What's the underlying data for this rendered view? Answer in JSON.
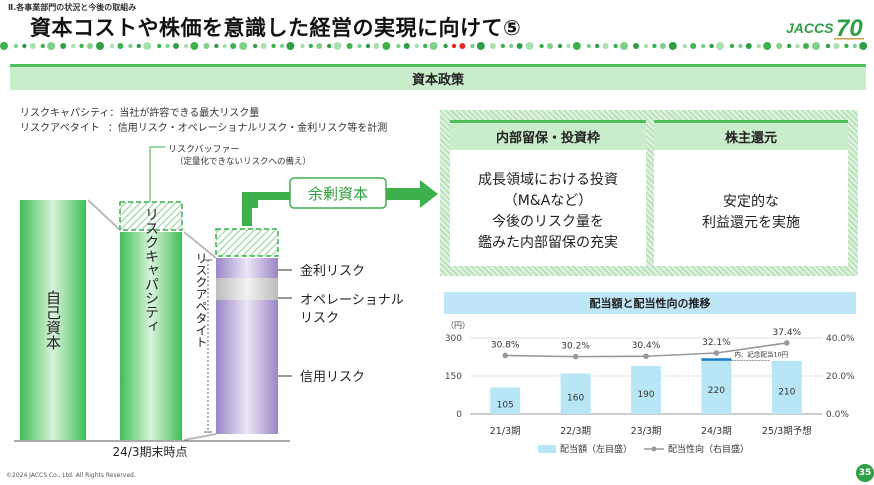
{
  "header": {
    "section": "Ⅱ.各事業部門の状況と今後の取組み",
    "title": "資本コストや株価を意識した経営の実現に向けて⑤",
    "logo_text": "JACCS",
    "logo_number": "70"
  },
  "banner": {
    "label": "資本政策"
  },
  "definitions": [
    {
      "term": "リスクキャパシティ",
      "desc": "：当社が許容できる最大リスク量"
    },
    {
      "term": "リスクアペタイト",
      "desc": "：信用リスク・オペレーショナルリスク・金利リスク等を計測"
    }
  ],
  "diagram": {
    "buffer_label": "リスクバッファー",
    "buffer_note": "（定量化できないリスクへの備え）",
    "columns": {
      "equity": "自己資本",
      "capacity": "リスクキャパシティ",
      "appetite": "リスクアペタイト"
    },
    "risk_items": [
      "金利リスク",
      "オペレーショナル",
      "リスク",
      "信用リスク"
    ],
    "surplus_label": "余剰資本",
    "period_label": "24/3期末時点"
  },
  "cards": {
    "retained": {
      "title": "内部留保・投資枠",
      "lines": [
        "成長領域における投資",
        "（M&Aなど）",
        "今後のリスク量を",
        "鑑みた内部留保の充実"
      ]
    },
    "returns": {
      "title": "株主還元",
      "lines": [
        "安定的な",
        "利益還元を実施"
      ]
    }
  },
  "chart_title": "配当額と配当性向の推移",
  "chart_data": {
    "type": "bar",
    "categories": [
      "21/3期",
      "22/3期",
      "23/3期",
      "24/3期",
      "25/3期予想"
    ],
    "series": [
      {
        "name": "配当額（左目盛）",
        "type": "bar",
        "values": [
          105,
          160,
          190,
          220,
          210
        ],
        "color": "#b8e6f5"
      },
      {
        "name": "配当性向（右目盛）",
        "type": "line",
        "values": [
          30.8,
          30.2,
          30.4,
          32.1,
          37.4
        ],
        "color": "#999999"
      }
    ],
    "value_labels": [
      "105",
      "160",
      "190",
      "220",
      "210"
    ],
    "ratio_labels": [
      "30.8%",
      "30.2%",
      "30.4%",
      "32.1%",
      "37.4%"
    ],
    "y_left": {
      "unit": "（円）",
      "ticks": [
        "300",
        "150",
        "0"
      ],
      "range": [
        0,
        300
      ]
    },
    "y_right": {
      "ticks": [
        "40.0%",
        "20.0%",
        "0.0%"
      ],
      "range": [
        0,
        40
      ]
    },
    "annotation": "内、記念配当10円",
    "commemorative_dividend": 10,
    "legend_position": "bottom"
  },
  "footer": {
    "copyright": "©2024 JACCS Co., Ltd. All Rights Reserved.",
    "page": "35"
  },
  "colors": {
    "accent_green": "#3db14b",
    "banner_green": "#c9eccb",
    "chart_blue": "#b8e6f5",
    "dot_red": "#e02b20"
  }
}
